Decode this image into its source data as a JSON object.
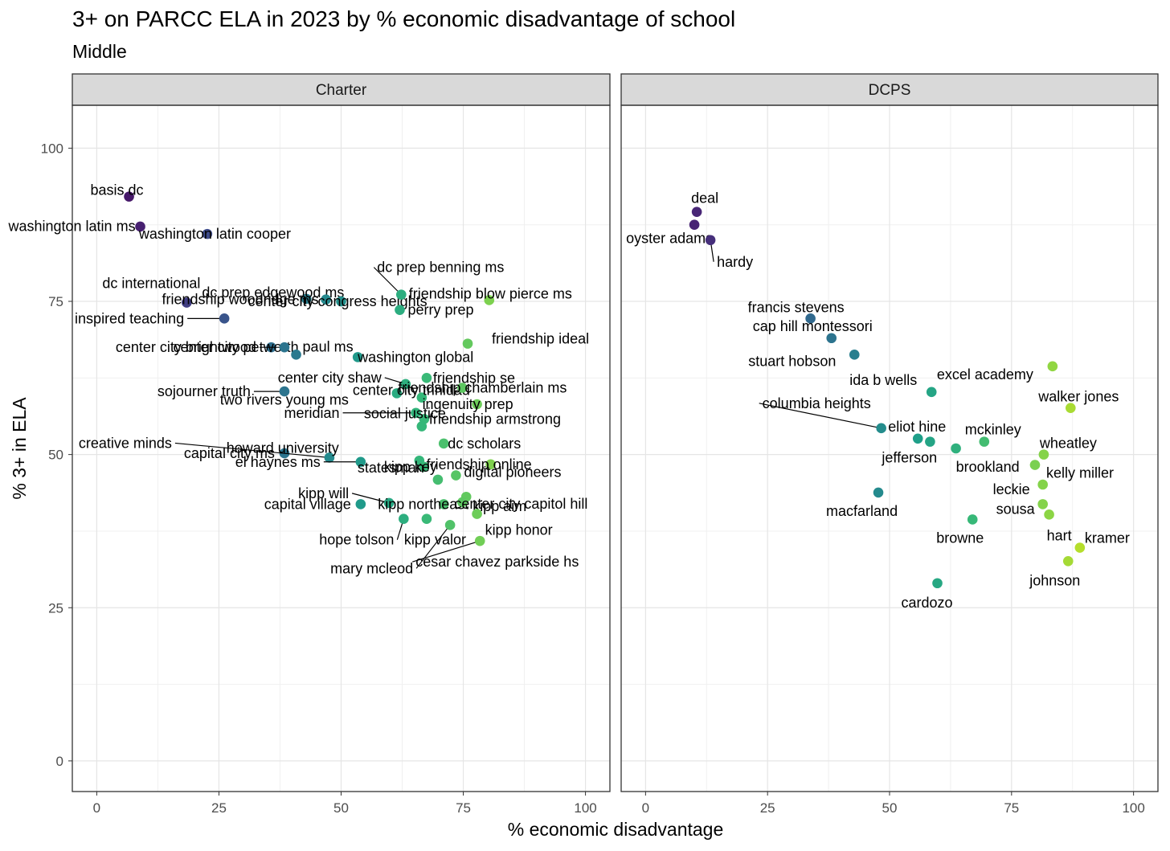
{
  "title": "3+ on PARCC ELA in 2023 by % economic disadvantage of school",
  "subtitle": "Middle",
  "chart_data": {
    "type": "scatter",
    "xlabel": "% economic disadvantage",
    "ylabel": "% 3+ in ELA",
    "xlim": [
      -5,
      105
    ],
    "ylim": [
      -5,
      107
    ],
    "xticks": [
      "0",
      "25",
      "50",
      "75",
      "100"
    ],
    "yticks": [
      "0",
      "25",
      "50",
      "75",
      "100"
    ],
    "grid": true,
    "color_scale": "viridis (by x value)",
    "panels": [
      {
        "name": "Charter",
        "points": [
          {
            "label": "basis dc",
            "x": 6.6,
            "y": 92.1
          },
          {
            "label": "washington latin ms",
            "x": 8.9,
            "y": 87.2
          },
          {
            "label": "washington latin cooper",
            "x": 22.6,
            "y": 86.0
          },
          {
            "label": "dc international",
            "x": 18.4,
            "y": 74.8
          },
          {
            "label": "inspired teaching",
            "x": 26.1,
            "y": 72.2
          },
          {
            "label": "dc prep edgewood ms",
            "x": 42.9,
            "y": 75.4
          },
          {
            "label": "friendship woodridge ms",
            "x": 46.9,
            "y": 75.3
          },
          {
            "label": "center city congress heights",
            "x": 50.0,
            "y": 75.0
          },
          {
            "label": "center city petworth",
            "x": 35.7,
            "y": 67.5
          },
          {
            "label": "center city brightwood",
            "x": 38.4,
            "y": 67.5
          },
          {
            "label": "paul ms",
            "x": 40.8,
            "y": 66.3
          },
          {
            "label": "sojourner truth",
            "x": 38.4,
            "y": 60.3
          },
          {
            "label": "capital city ms",
            "x": 38.4,
            "y": 50.2
          },
          {
            "label": "creative minds",
            "x": 47.6,
            "y": 49.5
          },
          {
            "label": "el haynes ms",
            "x": 54.0,
            "y": 48.8
          },
          {
            "label": "capital village",
            "x": 54.0,
            "y": 41.9
          },
          {
            "label": "washington global",
            "x": 53.4,
            "y": 65.9
          },
          {
            "label": "dc prep benning ms",
            "x": 62.3,
            "y": 76.1
          },
          {
            "label": "perry prep",
            "x": 62.0,
            "y": 73.6
          },
          {
            "label": "friendship blow pierce ms",
            "x": 80.3,
            "y": 75.2
          },
          {
            "label": "friendship ideal",
            "x": 75.9,
            "y": 68.1
          },
          {
            "label": "center city shaw",
            "x": 63.2,
            "y": 61.5
          },
          {
            "label": "friendship se",
            "x": 67.5,
            "y": 62.5
          },
          {
            "label": "two rivers young ms",
            "x": 61.4,
            "y": 60.0
          },
          {
            "label": "center city trinidad",
            "x": 66.5,
            "y": 59.3
          },
          {
            "label": "friendship chamberlain ms",
            "x": 74.8,
            "y": 60.9
          },
          {
            "label": "meridian",
            "x": 65.3,
            "y": 56.8
          },
          {
            "label": "ingenuity prep",
            "x": 77.8,
            "y": 58.2
          },
          {
            "label": "friendship armstrong",
            "x": 67.0,
            "y": 55.8
          },
          {
            "label": "social justice",
            "x": 66.5,
            "y": 54.6
          },
          {
            "label": "dc scholars",
            "x": 71.0,
            "y": 51.8
          },
          {
            "label": "howard university",
            "x": 66.0,
            "y": 49.0
          },
          {
            "label": "kipp key",
            "x": 67.0,
            "y": 48.0
          },
          {
            "label": "friendship online",
            "x": 80.6,
            "y": 48.4
          },
          {
            "label": "digital pioneers",
            "x": 73.5,
            "y": 46.6
          },
          {
            "label": "statesman",
            "x": 69.8,
            "y": 45.9
          },
          {
            "label": "kipp will",
            "x": 59.8,
            "y": 42.1
          },
          {
            "label": "kipp northeast",
            "x": 71.0,
            "y": 41.9
          },
          {
            "label": "kipp aim",
            "x": 75.6,
            "y": 43.1
          },
          {
            "label": "center city capitol hill",
            "x": 74.8,
            "y": 42.2
          },
          {
            "label": "kipp honor",
            "x": 77.8,
            "y": 40.3
          },
          {
            "label": "hope tolson",
            "x": 62.8,
            "y": 39.5
          },
          {
            "label": "kipp valor",
            "x": 67.5,
            "y": 39.5
          },
          {
            "label": "mary mcleod",
            "x": 72.3,
            "y": 38.5
          },
          {
            "label": "cesar chavez parkside hs",
            "x": 78.4,
            "y": 35.9
          }
        ]
      },
      {
        "name": "DCPS",
        "points": [
          {
            "label": "deal",
            "x": 10.5,
            "y": 89.6
          },
          {
            "label": "oyster adams",
            "x": 10.0,
            "y": 87.5
          },
          {
            "label": "hardy",
            "x": 13.3,
            "y": 85.0
          },
          {
            "label": "francis stevens",
            "x": 33.8,
            "y": 72.2
          },
          {
            "label": "cap hill montessori",
            "x": 38.1,
            "y": 69.0
          },
          {
            "label": "stuart hobson",
            "x": 42.8,
            "y": 66.3
          },
          {
            "label": "ida b wells",
            "x": 58.6,
            "y": 60.2
          },
          {
            "label": "excel academy",
            "x": 83.4,
            "y": 64.4
          },
          {
            "label": "walker jones",
            "x": 87.1,
            "y": 57.6
          },
          {
            "label": "columbia heights",
            "x": 48.3,
            "y": 54.3
          },
          {
            "label": "eliot hine",
            "x": 55.8,
            "y": 52.6
          },
          {
            "label": "jefferson",
            "x": 58.3,
            "y": 52.1
          },
          {
            "label": "brookland",
            "x": 63.6,
            "y": 51.0
          },
          {
            "label": "mckinley",
            "x": 69.4,
            "y": 52.1
          },
          {
            "label": "wheatley",
            "x": 81.6,
            "y": 50.0
          },
          {
            "label": "kelly miller",
            "x": 79.8,
            "y": 48.3
          },
          {
            "label": "leckie",
            "x": 81.4,
            "y": 45.1
          },
          {
            "label": "macfarland",
            "x": 47.7,
            "y": 43.8
          },
          {
            "label": "sousa",
            "x": 81.4,
            "y": 41.9
          },
          {
            "label": "hart",
            "x": 82.7,
            "y": 40.2
          },
          {
            "label": "browne",
            "x": 67.0,
            "y": 39.4
          },
          {
            "label": "kramer",
            "x": 89.0,
            "y": 34.8
          },
          {
            "label": "johnson",
            "x": 86.6,
            "y": 32.6
          },
          {
            "label": "cardozo",
            "x": 59.8,
            "y": 29.0
          }
        ]
      }
    ]
  }
}
